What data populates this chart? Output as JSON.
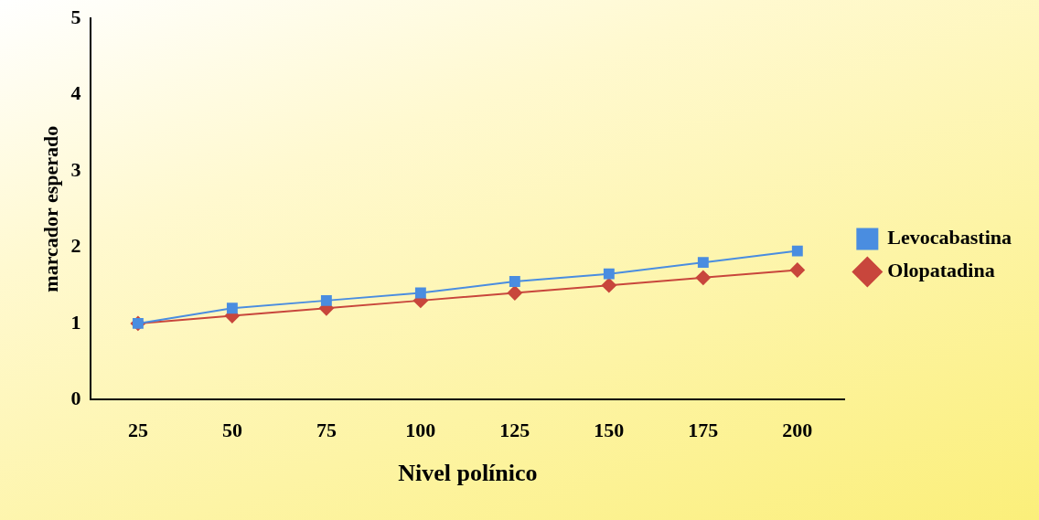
{
  "chart_data": {
    "type": "line",
    "xlabel": "Nivel polínico",
    "ylabel": "marcador esperado",
    "categories": [
      "25",
      "50",
      "75",
      "100",
      "125",
      "150",
      "175",
      "200"
    ],
    "series": [
      {
        "name": "Olopatadina",
        "color": "#c8463c",
        "marker": "diamond",
        "values": [
          1,
          1.1,
          1.2,
          1.3,
          1.4,
          1.5,
          1.6,
          1.7
        ]
      },
      {
        "name": "Levocabastina",
        "color": "#4a8de0",
        "marker": "square",
        "values": [
          1,
          1.2,
          1.3,
          1.4,
          1.55,
          1.65,
          1.8,
          1.95
        ]
      }
    ],
    "ylim": [
      0,
      5
    ],
    "yticks": [
      0,
      1,
      2,
      3,
      4,
      5
    ],
    "grid": false,
    "legend": "right",
    "line_style": "solid"
  }
}
